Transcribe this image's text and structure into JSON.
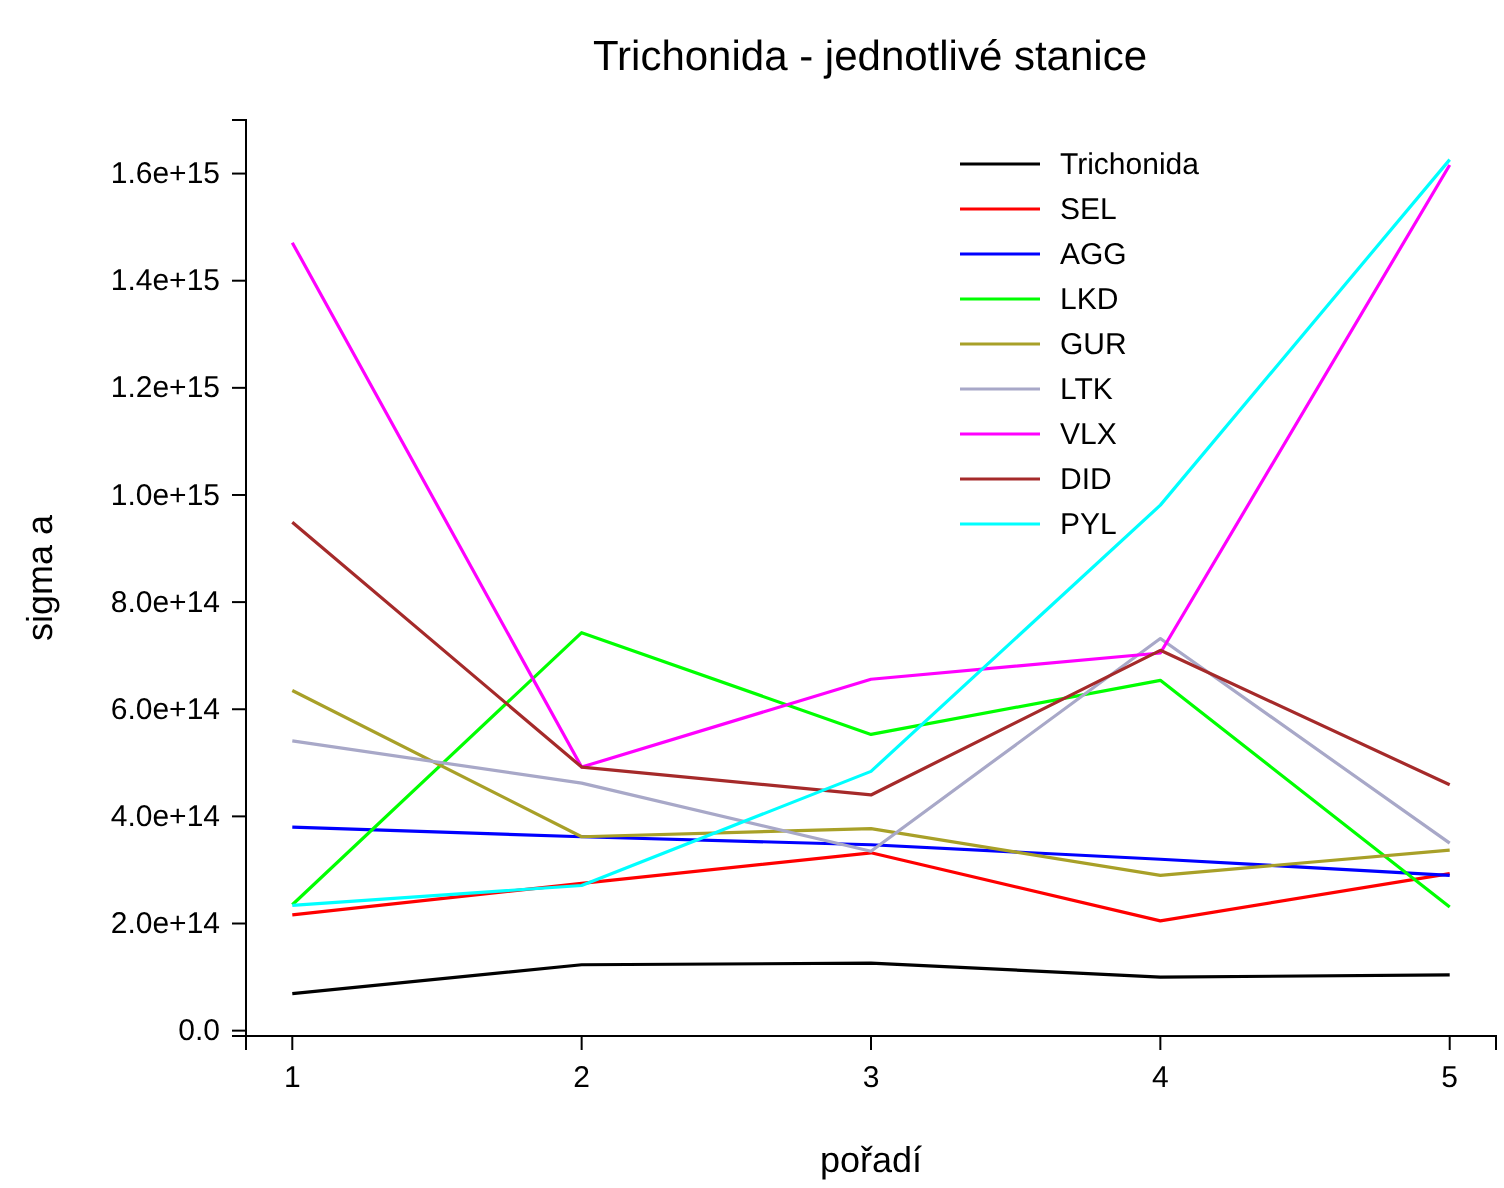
{
  "chart_data": {
    "type": "line",
    "title": "Trichonida - jednotlivé stanice",
    "xlabel": "pořadí",
    "ylabel": "sigma a",
    "x": [
      1,
      2,
      3,
      4,
      5
    ],
    "xlim": [
      0.84,
      5.16
    ],
    "xticks": [
      1,
      2,
      3,
      4,
      5
    ],
    "ylim": [
      -10000000000000.0,
      1700000000000000.0
    ],
    "yticks": [
      {
        "value": 0,
        "label": "0.0"
      },
      {
        "value": 200000000000000.0,
        "label": "2.0e+14"
      },
      {
        "value": 400000000000000.0,
        "label": "4.0e+14"
      },
      {
        "value": 600000000000000.0,
        "label": "6.0e+14"
      },
      {
        "value": 800000000000000.0,
        "label": "8.0e+14"
      },
      {
        "value": 1000000000000000.0,
        "label": "1.0e+15"
      },
      {
        "value": 1200000000000000.0,
        "label": "1.2e+15"
      },
      {
        "value": 1400000000000000.0,
        "label": "1.4e+15"
      },
      {
        "value": 1600000000000000.0,
        "label": "1.6e+15"
      }
    ],
    "legend": "top right",
    "grid": false,
    "marker": "none",
    "line_style": "solid",
    "series": [
      {
        "name": "Trichonida",
        "color": "#000000",
        "values": [
          69000000000000.0,
          123000000000000.0,
          126000000000000.0,
          100000000000000.0,
          104000000000000.0
        ]
      },
      {
        "name": "SEL",
        "color": "#ff0000",
        "values": [
          216000000000000.0,
          275000000000000.0,
          332000000000000.0,
          205000000000000.0,
          293000000000000.0
        ]
      },
      {
        "name": "AGG",
        "color": "#0000ff",
        "values": [
          380000000000000.0,
          362000000000000.0,
          347000000000000.0,
          320000000000000.0,
          290000000000000.0
        ]
      },
      {
        "name": "LKD",
        "color": "#00ff00",
        "values": [
          235000000000000.0,
          743000000000000.0,
          553000000000000.0,
          654000000000000.0,
          231000000000000.0
        ]
      },
      {
        "name": "GUR",
        "color": "#a8a028",
        "values": [
          635000000000000.0,
          362000000000000.0,
          377000000000000.0,
          290000000000000.0,
          337000000000000.0
        ]
      },
      {
        "name": "LTK",
        "color": "#a8a8c8",
        "values": [
          541000000000000.0,
          462000000000000.0,
          335000000000000.0,
          732000000000000.0,
          350000000000000.0
        ]
      },
      {
        "name": "VLX",
        "color": "#ff00ff",
        "values": [
          1471000000000000.0,
          492000000000000.0,
          656000000000000.0,
          705000000000000.0,
          1616000000000000.0
        ]
      },
      {
        "name": "DID",
        "color": "#a52a2a",
        "values": [
          949000000000000.0,
          492000000000000.0,
          440000000000000.0,
          710000000000000.0,
          459000000000000.0
        ]
      },
      {
        "name": "PYL",
        "color": "#00ffff",
        "values": [
          234000000000000.0,
          271000000000000.0,
          484000000000000.0,
          981000000000000.0,
          1626000000000000.0
        ]
      }
    ]
  }
}
